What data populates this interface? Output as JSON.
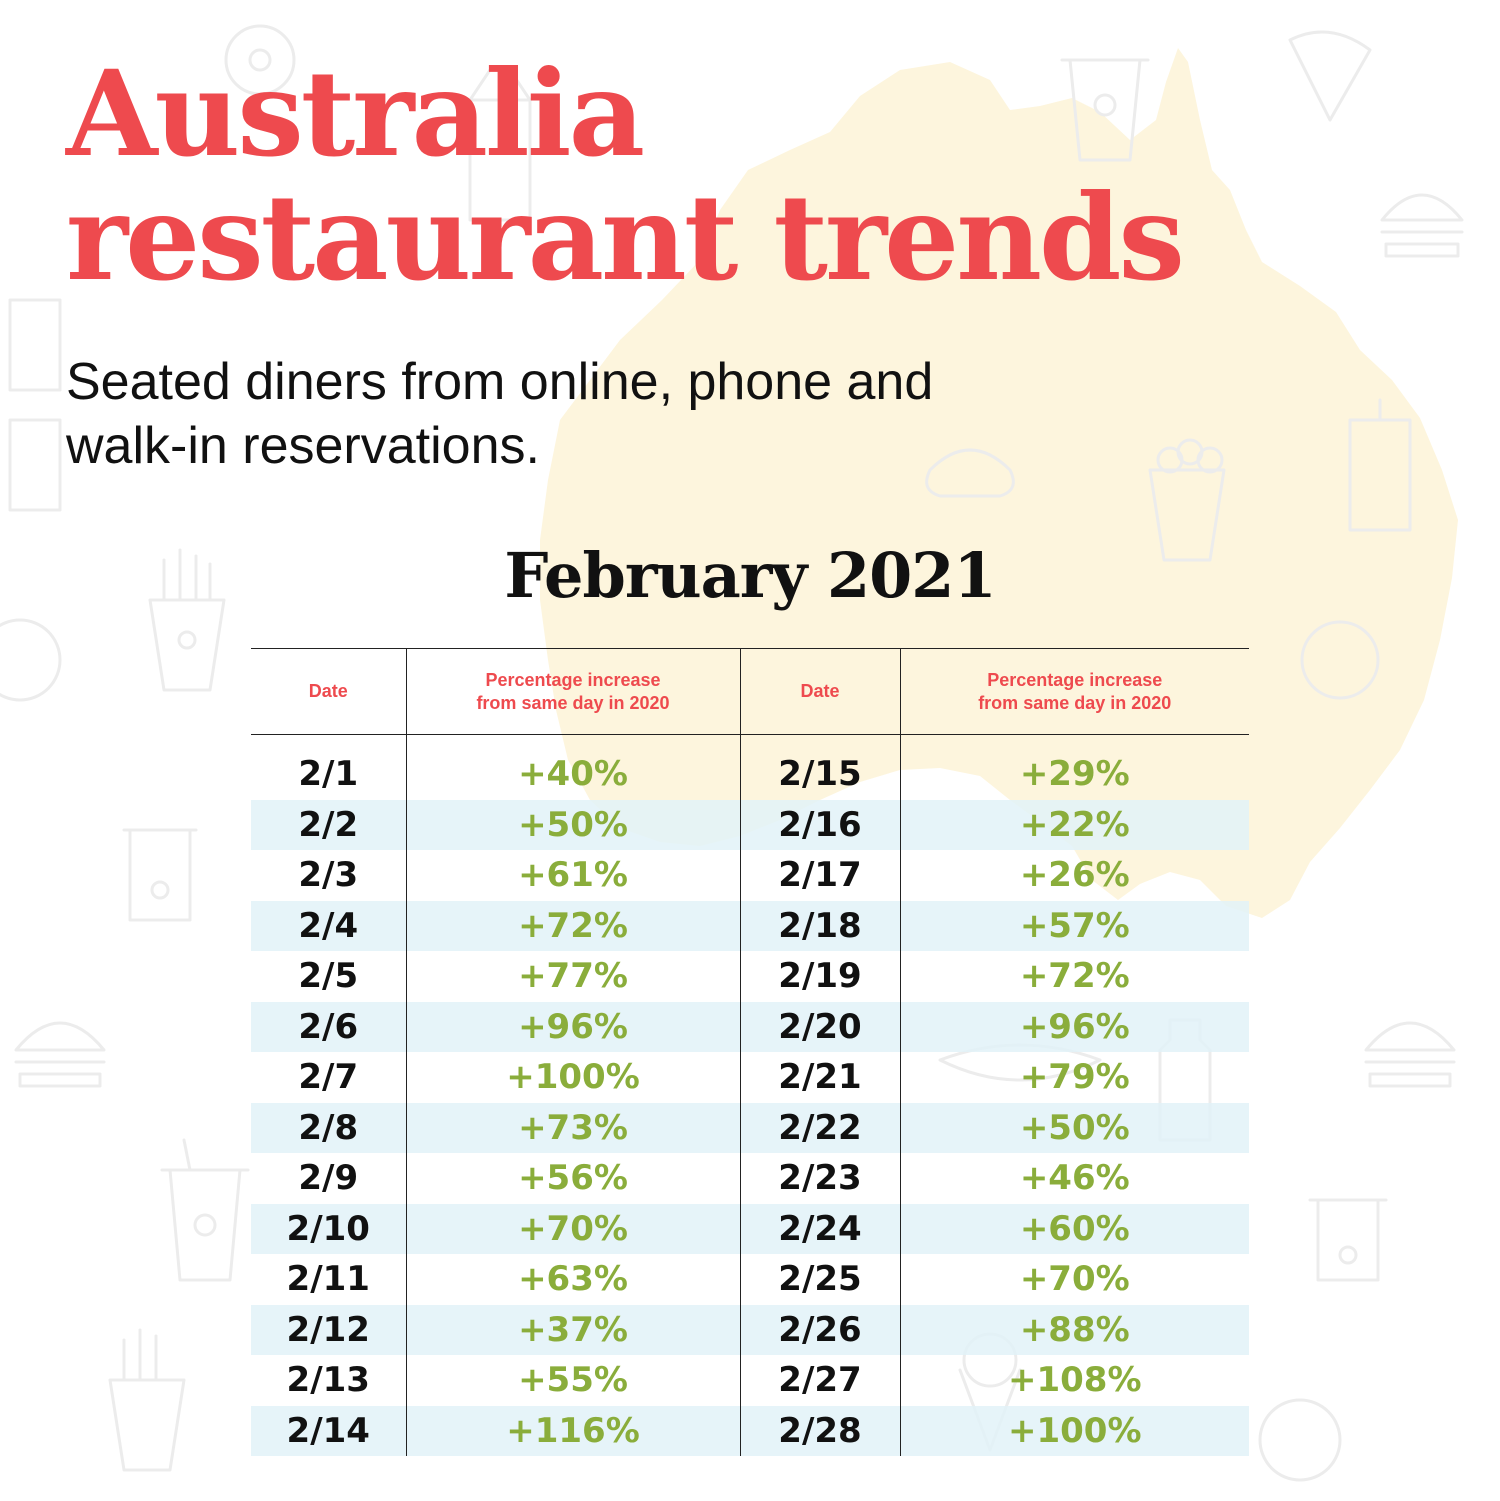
{
  "title_lines": [
    "Australia",
    "restaurant trends"
  ],
  "subtitle_lines": [
    "Seated diners from online, phone and",
    "walk-in reservations."
  ],
  "table_heading": "February 2021",
  "columns": {
    "date": "Date",
    "pct_line1": "Percentage increase",
    "pct_line2": "from same day in 2020"
  },
  "colors": {
    "title": "#ee4a4e",
    "header_text": "#ee4a4e",
    "percent_text": "#8aad3b",
    "alt_row": "#e2f2f8",
    "map_fill": "#fdf5dd"
  },
  "rows": [
    {
      "left_date": "2/1",
      "left_pct": "+40%",
      "right_date": "2/15",
      "right_pct": "+29%"
    },
    {
      "left_date": "2/2",
      "left_pct": "+50%",
      "right_date": "2/16",
      "right_pct": "+22%"
    },
    {
      "left_date": "2/3",
      "left_pct": "+61%",
      "right_date": "2/17",
      "right_pct": "+26%"
    },
    {
      "left_date": "2/4",
      "left_pct": "+72%",
      "right_date": "2/18",
      "right_pct": "+57%"
    },
    {
      "left_date": "2/5",
      "left_pct": "+77%",
      "right_date": "2/19",
      "right_pct": "+72%"
    },
    {
      "left_date": "2/6",
      "left_pct": "+96%",
      "right_date": "2/20",
      "right_pct": "+96%"
    },
    {
      "left_date": "2/7",
      "left_pct": "+100%",
      "right_date": "2/21",
      "right_pct": "+79%"
    },
    {
      "left_date": "2/8",
      "left_pct": "+73%",
      "right_date": "2/22",
      "right_pct": "+50%"
    },
    {
      "left_date": "2/9",
      "left_pct": "+56%",
      "right_date": "2/23",
      "right_pct": "+46%"
    },
    {
      "left_date": "2/10",
      "left_pct": "+70%",
      "right_date": "2/24",
      "right_pct": "+60%"
    },
    {
      "left_date": "2/11",
      "left_pct": "+63%",
      "right_date": "2/25",
      "right_pct": "+70%"
    },
    {
      "left_date": "2/12",
      "left_pct": "+37%",
      "right_date": "2/26",
      "right_pct": "+88%"
    },
    {
      "left_date": "2/13",
      "left_pct": "+55%",
      "right_date": "2/27",
      "right_pct": "+108%"
    },
    {
      "left_date": "2/14",
      "left_pct": "+116%",
      "right_date": "2/28",
      "right_pct": "+100%"
    }
  ]
}
